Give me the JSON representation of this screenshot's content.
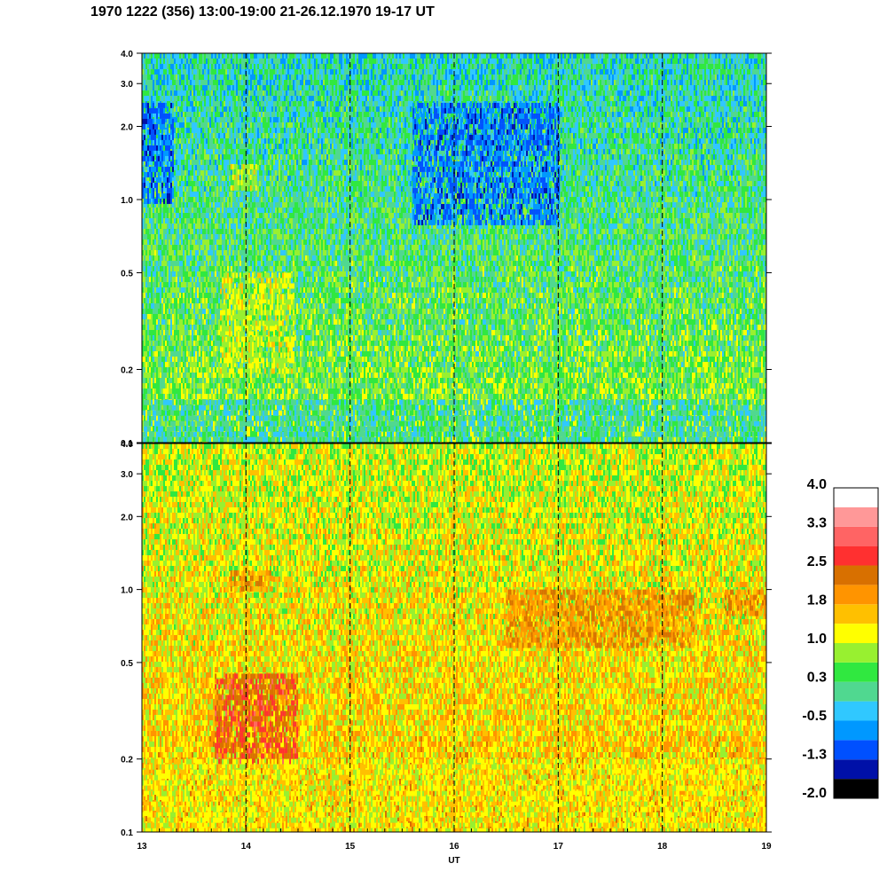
{
  "title": "1970 1222 (356) 13:00-19:00 21-26.12.1970  19-17 UT",
  "chart_data": {
    "type": "heatmap",
    "title": "1970 1222 (356) 13:00-19:00 21-26.12.1970  19-17 UT",
    "xlabel": "UT",
    "ylabel": "",
    "xlim": [
      13,
      19
    ],
    "x_ticks": [
      "13",
      "14",
      "15",
      "16",
      "17",
      "18",
      "19"
    ],
    "y_scale": "log",
    "ylim": [
      0.1,
      4.0
    ],
    "y_ticks": [
      {
        "value": 0.1,
        "label": "0.1"
      },
      {
        "value": 0.2,
        "label": "0.2"
      },
      {
        "value": 0.5,
        "label": "0.5"
      },
      {
        "value": 1.0,
        "label": "1.0"
      },
      {
        "value": 2.0,
        "label": "2.0"
      },
      {
        "value": 3.0,
        "label": "3.0"
      },
      {
        "value": 4.0,
        "label": "4.0"
      }
    ],
    "vertical_dashed_lines": [
      14,
      15,
      16,
      17,
      18
    ],
    "panels": [
      {
        "name": "upper",
        "dominant_levels": [
          -0.5,
          0.3,
          0.7
        ],
        "regions": [
          {
            "x": [
              13.75,
              14.45
            ],
            "y": [
              0.2,
              0.5
            ],
            "level": 1.0
          },
          {
            "x": [
              13.85,
              14.1
            ],
            "y": [
              1.1,
              1.4
            ],
            "level": 1.0
          },
          {
            "x": [
              13.0,
              13.3
            ],
            "y": [
              1.0,
              2.5
            ],
            "level": -0.9
          },
          {
            "x": [
              15.6,
              17.0
            ],
            "y": [
              0.8,
              2.5
            ],
            "level": -0.9
          },
          {
            "x": [
              13.0,
              19.0
            ],
            "y": [
              0.1,
              0.15
            ],
            "level": 0.0
          }
        ]
      },
      {
        "name": "lower",
        "dominant_levels": [
          1.0,
          1.5,
          2.0
        ],
        "regions": [
          {
            "x": [
              13.7,
              14.5
            ],
            "y": [
              0.2,
              0.45
            ],
            "level": 2.5
          },
          {
            "x": [
              13.85,
              14.25
            ],
            "y": [
              1.0,
              1.2
            ],
            "level": 2.0
          },
          {
            "x": [
              16.5,
              18.3
            ],
            "y": [
              0.6,
              1.0
            ],
            "level": 2.0
          },
          {
            "x": [
              18.6,
              19.0
            ],
            "y": [
              0.8,
              1.0
            ],
            "level": 2.0
          },
          {
            "x": [
              13.0,
              19.0
            ],
            "y": [
              0.1,
              0.2
            ],
            "level": 1.2
          }
        ]
      }
    ],
    "colorbar": {
      "min": -2.0,
      "max": 4.0,
      "labels": [
        "4.0",
        "3.3",
        "2.5",
        "1.8",
        "1.0",
        "0.3",
        "-0.5",
        "-1.3",
        "-2.0"
      ],
      "colors": [
        "#000000",
        "#0010a8",
        "#0050ff",
        "#0098ff",
        "#30c8ff",
        "#50d890",
        "#30e840",
        "#98f030",
        "#ffff00",
        "#ffc000",
        "#ff9400",
        "#d87000",
        "#ff3030",
        "#ff6464",
        "#ff9898",
        "#ffffff"
      ]
    }
  }
}
